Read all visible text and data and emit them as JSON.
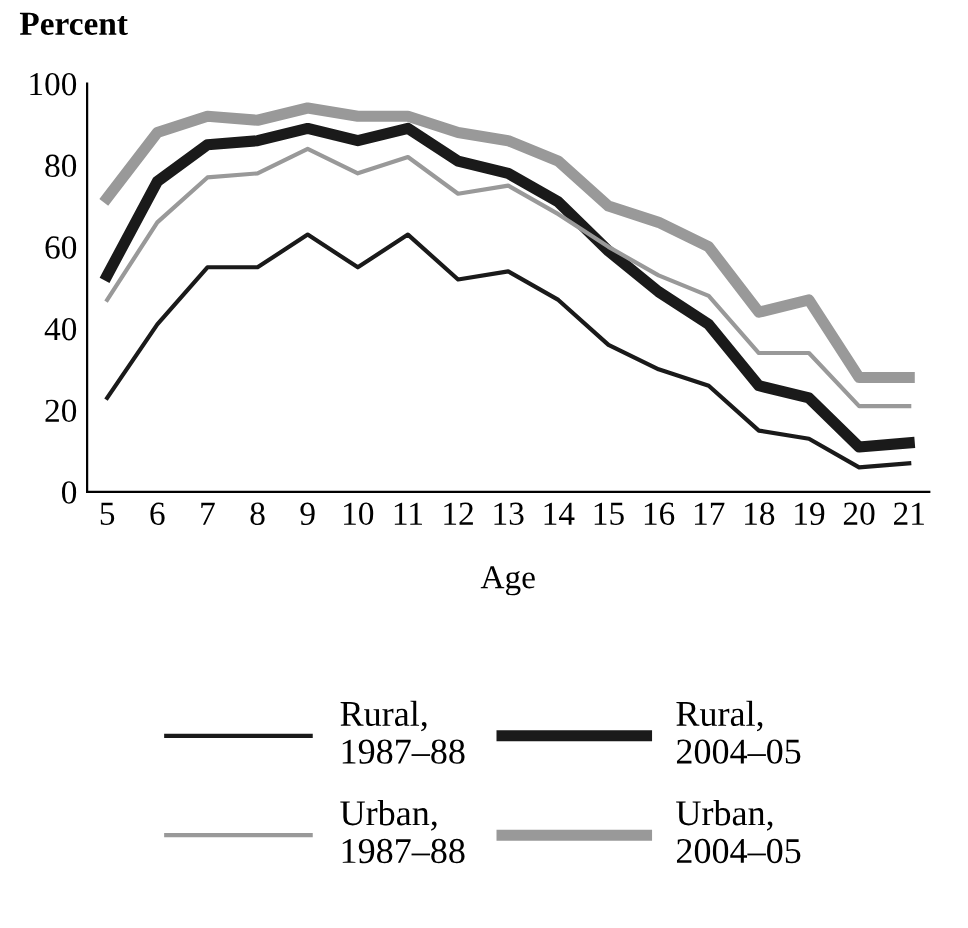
{
  "chart_data": {
    "type": "line",
    "ylabel": "Percent",
    "xlabel": "Age",
    "categories": [
      "5",
      "6",
      "7",
      "8",
      "9",
      "10",
      "11",
      "12",
      "13",
      "14",
      "15",
      "16",
      "17",
      "18",
      "19",
      "20",
      "21"
    ],
    "ylim": [
      0,
      100
    ],
    "yticks": [
      0,
      20,
      40,
      60,
      80,
      100
    ],
    "grid": false,
    "legend": "bottom",
    "marker": "none",
    "series": [
      {
        "name": "Rural,\n1987–88",
        "color": "#1a1a1a",
        "values": [
          23,
          41,
          55,
          55,
          63,
          55,
          63,
          52,
          54,
          47,
          36,
          30,
          26,
          15,
          13,
          6,
          7
        ]
      },
      {
        "name": "Rural,\n2004–05",
        "color": "#1a1a1a",
        "values": [
          53,
          76,
          85,
          86,
          89,
          86,
          89,
          81,
          78,
          71,
          59,
          49,
          41,
          26,
          23,
          11,
          12
        ]
      },
      {
        "name": "Urban,\n1987–88",
        "color": "#999999",
        "values": [
          47,
          66,
          77,
          78,
          84,
          78,
          82,
          73,
          75,
          68,
          60,
          53,
          48,
          34,
          34,
          21,
          21
        ]
      },
      {
        "name": "Urban,\n2004–05",
        "color": "#999999",
        "values": [
          72,
          88,
          92,
          91,
          94,
          92,
          92,
          88,
          86,
          81,
          70,
          66,
          60,
          44,
          47,
          28,
          28
        ]
      }
    ]
  }
}
